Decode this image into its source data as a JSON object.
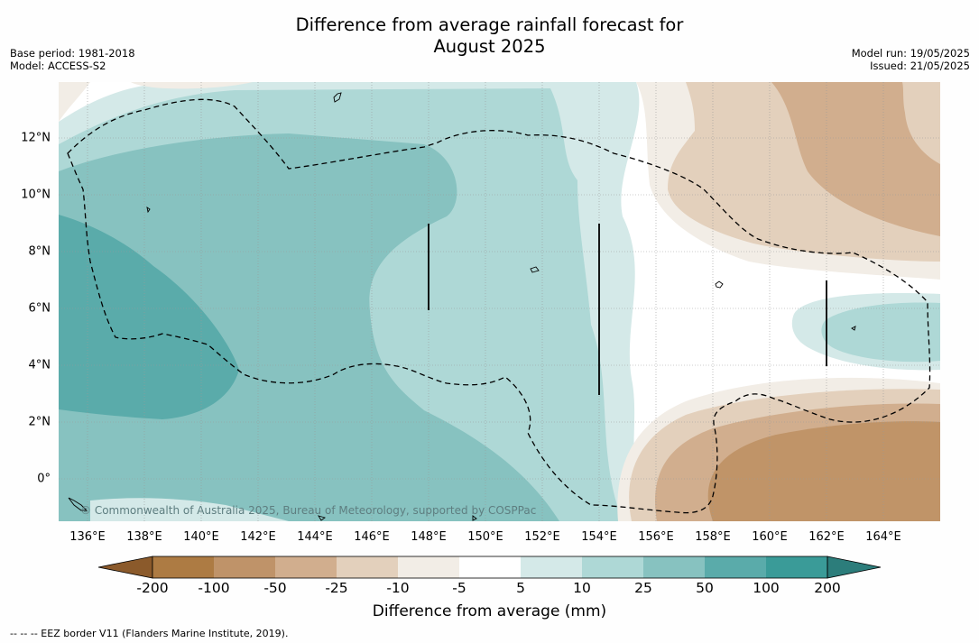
{
  "title_line1": "Difference from average rainfall forecast for",
  "title_line2": "August 2025",
  "meta_left": {
    "base_period": "Base period: 1981-2018",
    "model": "Model: ACCESS-S2"
  },
  "meta_right": {
    "model_run": "Model run: 19/05/2025",
    "issued": "Issued: 21/05/2025"
  },
  "lon_labels": [
    "136°E",
    "138°E",
    "140°E",
    "142°E",
    "144°E",
    "146°E",
    "148°E",
    "150°E",
    "152°E",
    "154°E",
    "156°E",
    "158°E",
    "160°E",
    "162°E",
    "164°E"
  ],
  "lat_labels": [
    "12°N",
    "10°N",
    "8°N",
    "6°N",
    "4°N",
    "2°N",
    "0°"
  ],
  "copyright": "© Commonwealth of Australia 2025, Bureau of Meteorology, supported by COSPPac",
  "colorbar": {
    "title": "Difference from average (mm)",
    "ticks": [
      "-200",
      "-100",
      "-50",
      "-25",
      "-10",
      "-5",
      "5",
      "10",
      "25",
      "50",
      "100",
      "200"
    ],
    "colors": [
      "#8b5a2b",
      "#ad7b43",
      "#bf9369",
      "#d1ae8e",
      "#e3d0bc",
      "#f2ede6",
      "#ffffff",
      "#d4e9e8",
      "#aed8d6",
      "#87c2c0",
      "#5aabaa",
      "#3a9b98",
      "#2c7d7b"
    ]
  },
  "footnote": "--  --  -- EEZ border V11 (Flanders Marine Institute, 2019)."
}
